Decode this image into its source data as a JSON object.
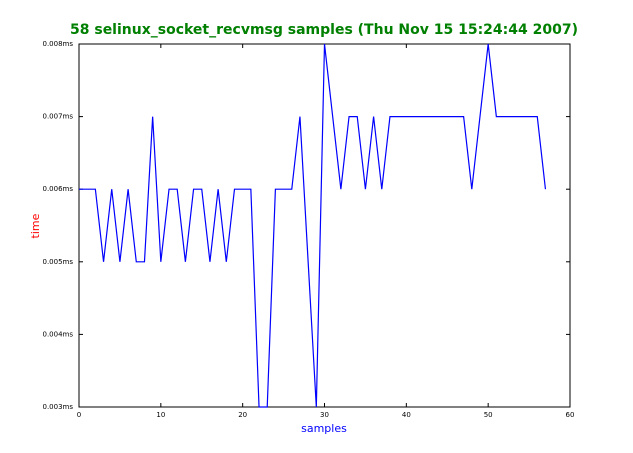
{
  "chart_data": {
    "type": "line",
    "title": "58 selinux_socket_recvmsg samples (Thu Nov 15 15:24:44 2007)",
    "xlabel": "samples",
    "ylabel": "time",
    "x": [
      0,
      1,
      2,
      3,
      4,
      5,
      6,
      7,
      8,
      9,
      10,
      11,
      12,
      13,
      14,
      15,
      16,
      17,
      18,
      19,
      20,
      21,
      22,
      23,
      24,
      25,
      26,
      27,
      28,
      29,
      30,
      31,
      32,
      33,
      34,
      35,
      36,
      37,
      38,
      39,
      40,
      41,
      42,
      43,
      44,
      45,
      46,
      47,
      48,
      49,
      50,
      51,
      52,
      53,
      54,
      55,
      56,
      57
    ],
    "series": [
      {
        "color": "#0000ff",
        "values": [
          0.006,
          0.006,
          0.006,
          0.005,
          0.006,
          0.005,
          0.006,
          0.005,
          0.005,
          0.007,
          0.005,
          0.006,
          0.006,
          0.005,
          0.006,
          0.006,
          0.005,
          0.006,
          0.005,
          0.006,
          0.006,
          0.006,
          0.003,
          0.003,
          0.006,
          0.006,
          0.006,
          0.007,
          0.005,
          0.003,
          0.008,
          0.007,
          0.006,
          0.007,
          0.007,
          0.006,
          0.007,
          0.006,
          0.007,
          0.007,
          0.007,
          0.007,
          0.007,
          0.007,
          0.007,
          0.007,
          0.007,
          0.007,
          0.006,
          0.007,
          0.008,
          0.007,
          0.007,
          0.007,
          0.007,
          0.007,
          0.007,
          0.006
        ]
      }
    ],
    "xlim": [
      0,
      60
    ],
    "xticks": [
      0,
      10,
      20,
      30,
      40,
      50,
      60
    ],
    "ylim": [
      0.003,
      0.008
    ],
    "yticks": [
      {
        "value": 0.003,
        "label": "0.003ms"
      },
      {
        "value": 0.004,
        "label": "0.004ms"
      },
      {
        "value": 0.005,
        "label": "0.005ms"
      },
      {
        "value": 0.006,
        "label": "0.006ms"
      },
      {
        "value": 0.007,
        "label": "0.007ms"
      },
      {
        "value": 0.008,
        "label": "0.008ms"
      }
    ],
    "title_color": "#008000",
    "xlabel_color": "#0000ff",
    "ylabel_color": "#ff0000"
  }
}
